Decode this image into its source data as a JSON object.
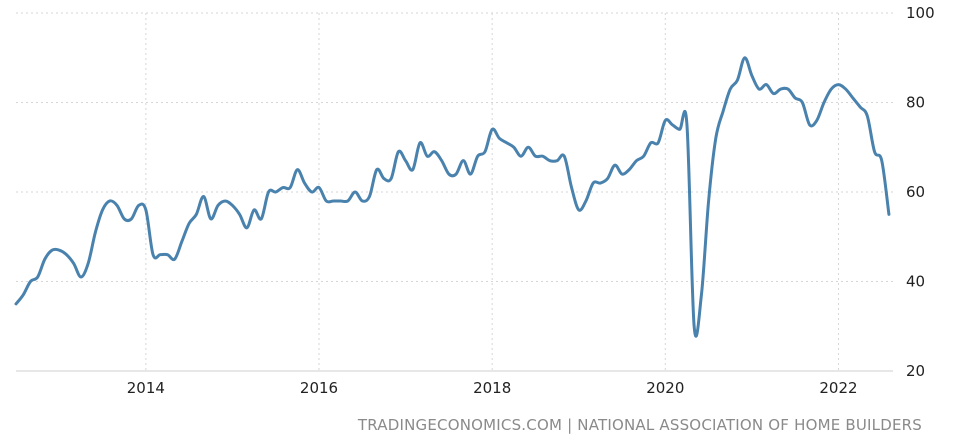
{
  "chart_data": {
    "type": "line",
    "title": "",
    "xlabel": "",
    "ylabel": "",
    "xlim": [
      2012.5,
      2022.63
    ],
    "ylim": [
      20,
      100
    ],
    "y_ticks": [
      "20",
      "40",
      "60",
      "80",
      "100"
    ],
    "x_ticks": [
      "2014",
      "2016",
      "2018",
      "2020",
      "2022"
    ],
    "grid": true,
    "line_color": "#4a82ae",
    "series": [
      {
        "x": [
          2012.5,
          2012.583,
          2012.667,
          2012.75,
          2012.833,
          2012.917,
          2013.0,
          2013.083,
          2013.167,
          2013.25,
          2013.333,
          2013.417,
          2013.5,
          2013.583,
          2013.667,
          2013.75,
          2013.833,
          2013.917,
          2014.0,
          2014.083,
          2014.167,
          2014.25,
          2014.333,
          2014.417,
          2014.5,
          2014.583,
          2014.667,
          2014.75,
          2014.833,
          2014.917,
          2015.0,
          2015.083,
          2015.167,
          2015.25,
          2015.333,
          2015.417,
          2015.5,
          2015.583,
          2015.667,
          2015.75,
          2015.833,
          2015.917,
          2016.0,
          2016.083,
          2016.167,
          2016.25,
          2016.333,
          2016.417,
          2016.5,
          2016.583,
          2016.667,
          2016.75,
          2016.833,
          2016.917,
          2017.0,
          2017.083,
          2017.167,
          2017.25,
          2017.333,
          2017.417,
          2017.5,
          2017.583,
          2017.667,
          2017.75,
          2017.833,
          2017.917,
          2018.0,
          2018.083,
          2018.167,
          2018.25,
          2018.333,
          2018.417,
          2018.5,
          2018.583,
          2018.667,
          2018.75,
          2018.833,
          2018.917,
          2019.0,
          2019.083,
          2019.167,
          2019.25,
          2019.333,
          2019.417,
          2019.5,
          2019.583,
          2019.667,
          2019.75,
          2019.833,
          2019.917,
          2020.0,
          2020.083,
          2020.167,
          2020.25,
          2020.333,
          2020.417,
          2020.5,
          2020.583,
          2020.667,
          2020.75,
          2020.833,
          2020.917,
          2021.0,
          2021.083,
          2021.167,
          2021.25,
          2021.333,
          2021.417,
          2021.5,
          2021.583,
          2021.667,
          2021.75,
          2021.833,
          2021.917,
          2022.0,
          2022.083,
          2022.167,
          2022.25,
          2022.333,
          2022.417,
          2022.5,
          2022.583
        ],
        "values": [
          35,
          37,
          40,
          41,
          45,
          47,
          47,
          46,
          44,
          41,
          44,
          51,
          56,
          58,
          57,
          54,
          54,
          57,
          56,
          46,
          46,
          46,
          45,
          49,
          53,
          55,
          59,
          54,
          57,
          58,
          57,
          55,
          52,
          56,
          54,
          60,
          60,
          61,
          61,
          65,
          62,
          60,
          61,
          58,
          58,
          58,
          58,
          60,
          58,
          59,
          65,
          63,
          63,
          69,
          67,
          65,
          71,
          68,
          69,
          67,
          64,
          64,
          67,
          64,
          68,
          69,
          74,
          72,
          71,
          70,
          68,
          70,
          68,
          68,
          67,
          67,
          68,
          61,
          56,
          58,
          62,
          62,
          63,
          66,
          64,
          65,
          67,
          68,
          71,
          71,
          76,
          75,
          74,
          75,
          30,
          37,
          58,
          72,
          78,
          83,
          85,
          90,
          86,
          83,
          84,
          82,
          83,
          83,
          81,
          80,
          75,
          76,
          80,
          83,
          84,
          83,
          81,
          79,
          77,
          69,
          67,
          55
        ]
      }
    ]
  },
  "source_text": "TRADINGECONOMICS.COM | NATIONAL ASSOCIATION OF HOME BUILDERS"
}
